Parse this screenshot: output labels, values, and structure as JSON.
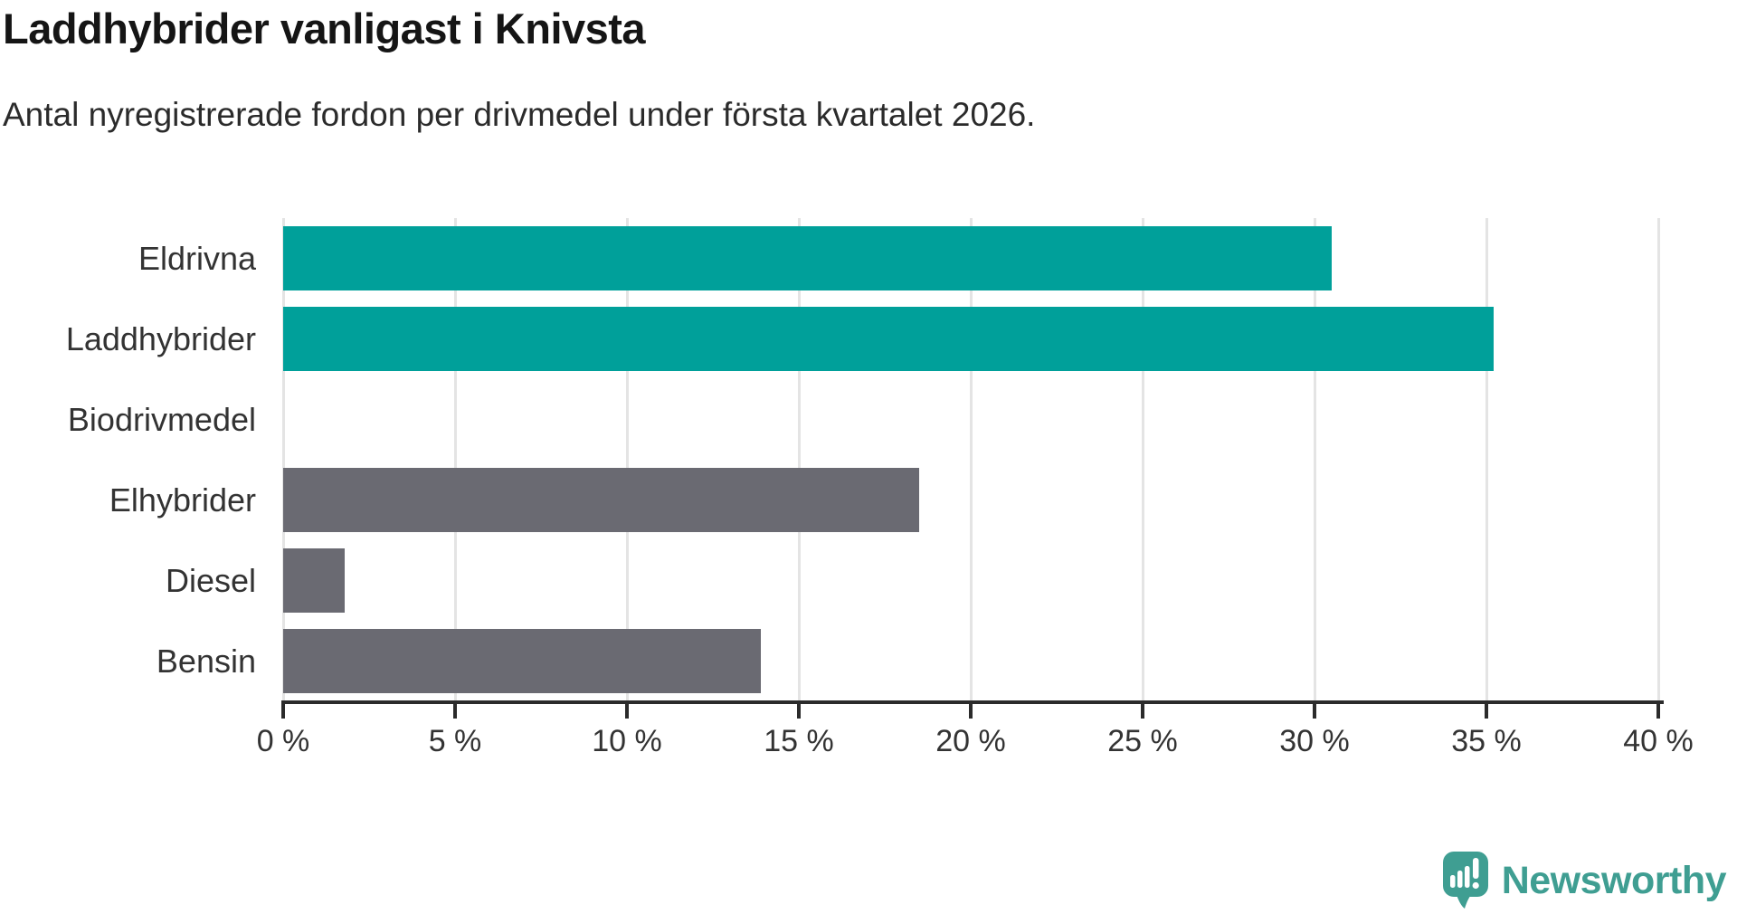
{
  "title": "Laddhybrider vanligast i Knivsta",
  "subtitle": "Antal nyregistrerade fordon per drivmedel under första kvartalet 2026.",
  "chart_data": {
    "type": "bar",
    "orientation": "horizontal",
    "title": "Laddhybrider vanligast i Knivsta",
    "subtitle": "Antal nyregistrerade fordon per drivmedel under första kvartalet 2026.",
    "unit": "%",
    "categories": [
      "Eldrivna",
      "Laddhybrider",
      "Biodrivmedel",
      "Elhybrider",
      "Diesel",
      "Bensin"
    ],
    "values": [
      30.5,
      35.2,
      0,
      18.5,
      1.8,
      13.9
    ],
    "colors": [
      "#00a09a",
      "#00a09a",
      "#6a6a72",
      "#6a6a72",
      "#6a6a72",
      "#6a6a72"
    ],
    "highlight_color": "#00a09a",
    "default_color": "#6a6a72",
    "xlim": [
      0,
      40
    ],
    "x_ticks": [
      {
        "value": 0,
        "label": "0 %"
      },
      {
        "value": 5,
        "label": "5 %"
      },
      {
        "value": 10,
        "label": "10 %"
      },
      {
        "value": 15,
        "label": "15 %"
      },
      {
        "value": 20,
        "label": "20 %"
      },
      {
        "value": 25,
        "label": "25 %"
      },
      {
        "value": 30,
        "label": "30 %"
      },
      {
        "value": 35,
        "label": "35 %"
      },
      {
        "value": 40,
        "label": "40 %"
      }
    ],
    "grid": "vertical",
    "gridline_color": "#e4e4e4",
    "axis_color": "#2b2b2b",
    "legend": "none"
  },
  "branding": {
    "logo_text": "Newsworthy",
    "logo_color": "#3f9e92",
    "logo_icon": "speech-bubble-bar-chart-icon"
  }
}
